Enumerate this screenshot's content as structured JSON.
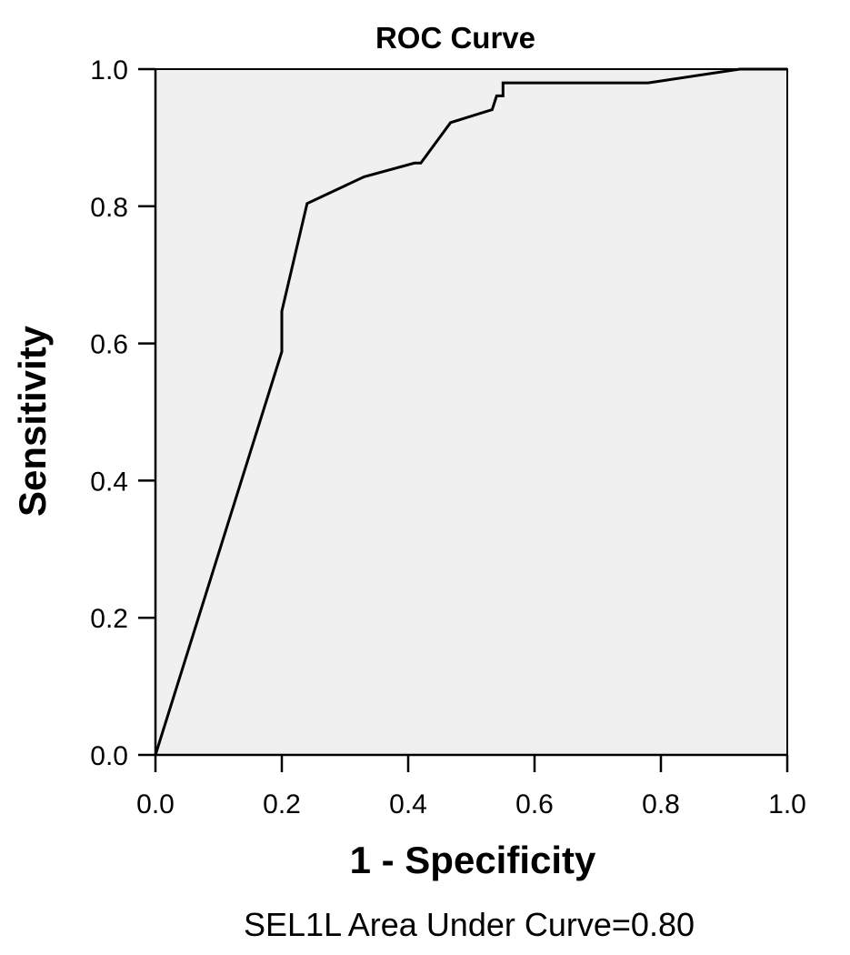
{
  "chart_data": {
    "type": "line",
    "title": "ROC Curve",
    "xlabel": "1 - Specificity",
    "ylabel": "Sensitivity",
    "caption": "SEL1L  Area Under Curve=0.80",
    "xlim": [
      0,
      1
    ],
    "ylim": [
      0,
      1
    ],
    "xticks": [
      "0.0",
      "0.2",
      "0.4",
      "0.6",
      "0.8",
      "1.0"
    ],
    "yticks": [
      "0.0",
      "0.2",
      "0.4",
      "0.6",
      "0.8",
      "1.0"
    ],
    "grid": false,
    "legend": "none",
    "colors": {
      "plot_background": "#f0f0f0",
      "line": "#000000",
      "axis": "#000000"
    },
    "series": [
      {
        "x": [
          0.0,
          0.2,
          0.2,
          0.24,
          0.33,
          0.41,
          0.42,
          0.467,
          0.533,
          0.54,
          0.54,
          0.55,
          0.55,
          0.78,
          0.925,
          1.0
        ],
        "y": [
          0.0,
          0.588,
          0.647,
          0.804,
          0.843,
          0.863,
          0.863,
          0.922,
          0.941,
          0.961,
          0.961,
          0.961,
          0.98,
          0.98,
          1.0,
          1.0
        ]
      }
    ]
  }
}
